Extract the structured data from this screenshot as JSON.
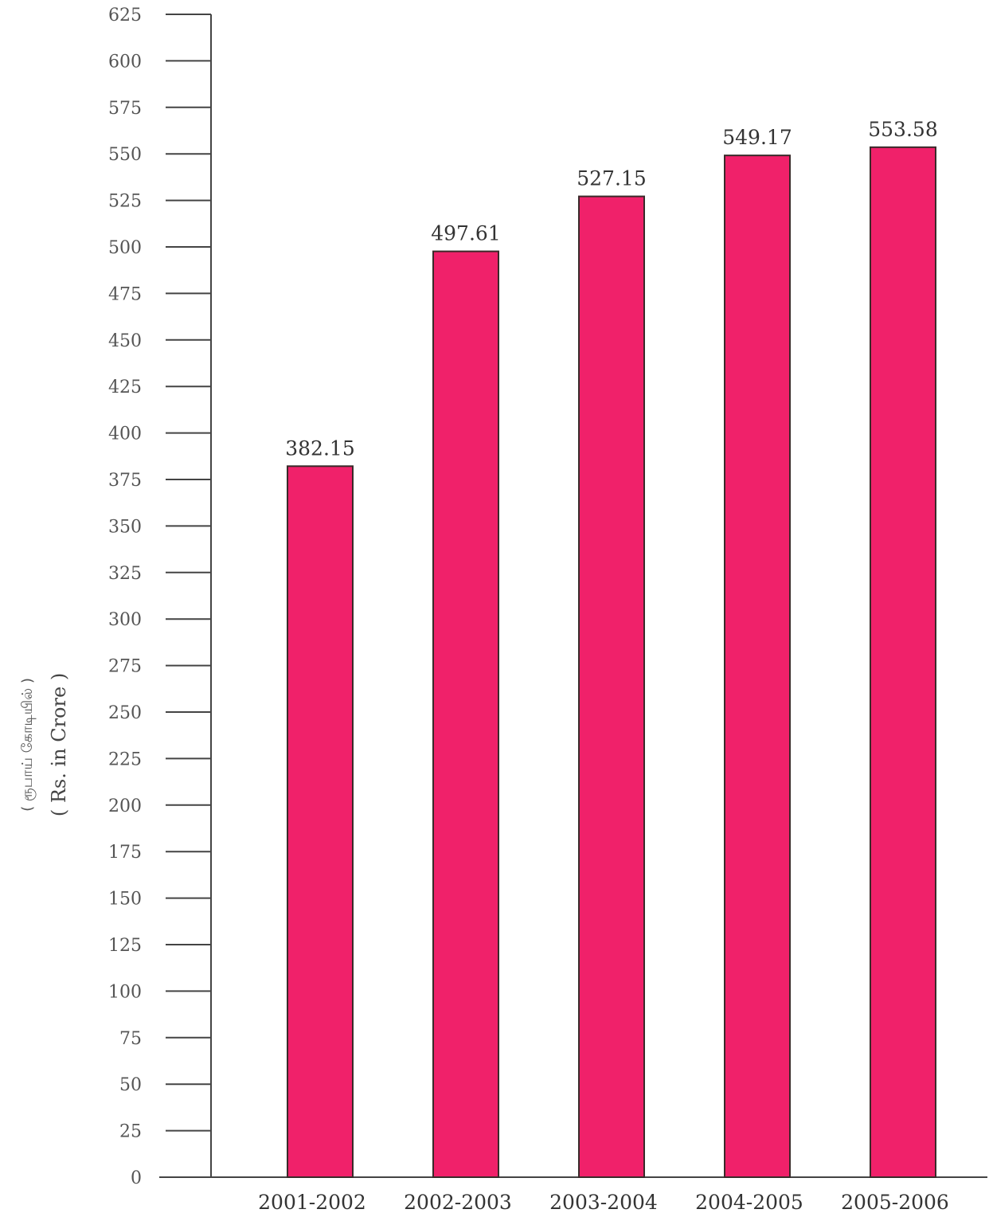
{
  "chart_data": {
    "type": "bar",
    "categories": [
      "2001-2002",
      "2002-2003",
      "2003-2004",
      "2004-2005",
      "2005-2006"
    ],
    "values": [
      382.15,
      497.61,
      527.15,
      549.17,
      553.58
    ],
    "value_labels": [
      "382.15",
      "497.61",
      "527.15",
      "549.17",
      "553.58"
    ],
    "ylabel": "( Rs. in Crore )",
    "ylabel_secondary": "( ரூபாய் கோடியில் )",
    "ylim": [
      0,
      625
    ],
    "yticks": [
      0,
      25,
      50,
      75,
      100,
      125,
      150,
      175,
      200,
      225,
      250,
      275,
      300,
      325,
      350,
      375,
      400,
      425,
      450,
      475,
      500,
      525,
      550,
      575,
      600,
      625
    ],
    "grid": false,
    "bar_color": "#f0216a",
    "axis_color": "#444444"
  }
}
